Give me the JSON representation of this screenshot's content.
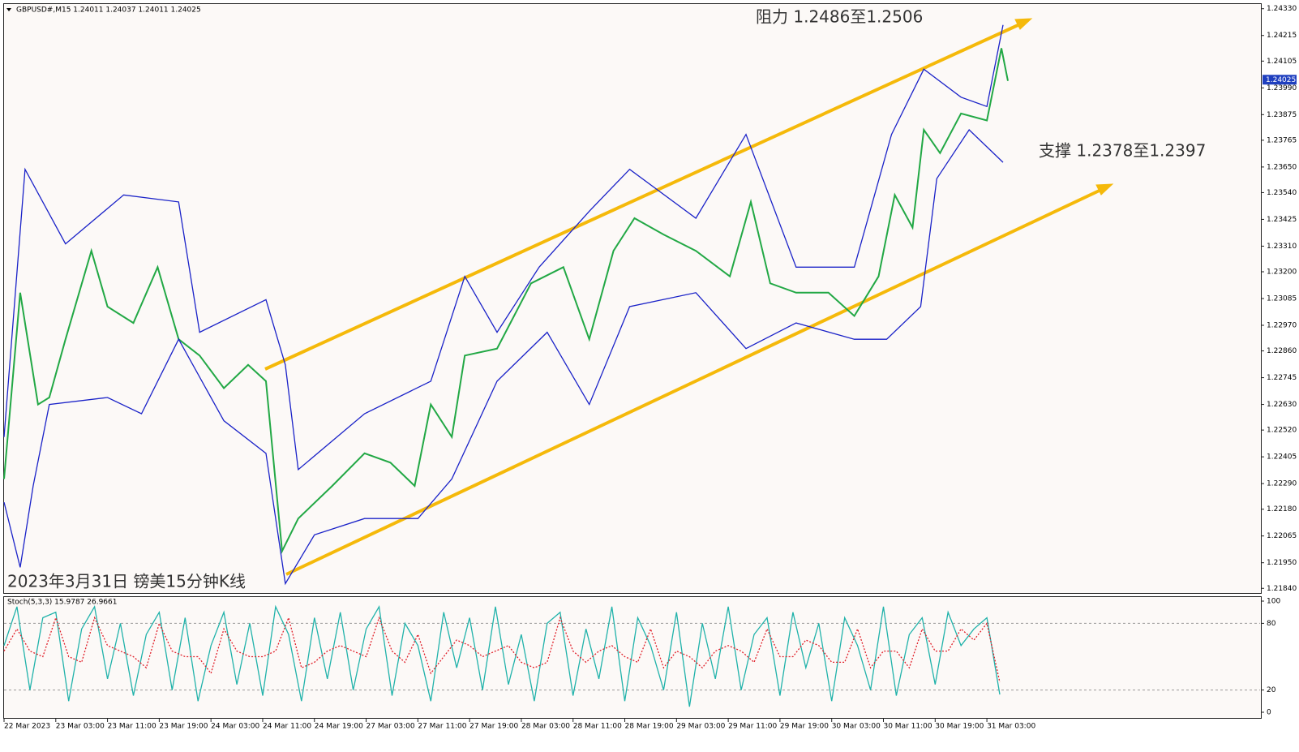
{
  "chart_data": [
    {
      "type": "line",
      "title": "GBPUSD#,M15  1.24011 1.24037 1.24011 1.24025",
      "annotations": [
        "阻力 1.2486至1.2506",
        "支撑 1.2378至1.2397",
        "2023年3月31日 镑美15分钟K线"
      ],
      "last_price": 1.24025,
      "xlim": [
        0,
        777
      ],
      "ylim": [
        1.2182,
        1.2435
      ],
      "yticks": [
        {
          "value": 1.2433,
          "label": "1.24330"
        },
        {
          "value": 1.24215,
          "label": "1.24215"
        },
        {
          "value": 1.24105,
          "label": "1.24105"
        },
        {
          "value": 1.2399,
          "label": "1.23990"
        },
        {
          "value": 1.23875,
          "label": "1.23875"
        },
        {
          "value": 1.23765,
          "label": "1.23765"
        },
        {
          "value": 1.2365,
          "label": "1.23650"
        },
        {
          "value": 1.2354,
          "label": "1.23540"
        },
        {
          "value": 1.23425,
          "label": "1.23425"
        },
        {
          "value": 1.2331,
          "label": "1.23310"
        },
        {
          "value": 1.232,
          "label": "1.23200"
        },
        {
          "value": 1.23085,
          "label": "1.23085"
        },
        {
          "value": 1.2297,
          "label": "1.22970"
        },
        {
          "value": 1.2286,
          "label": "1.22860"
        },
        {
          "value": 1.22745,
          "label": "1.22745"
        },
        {
          "value": 1.2263,
          "label": "1.22630"
        },
        {
          "value": 1.2252,
          "label": "1.22520"
        },
        {
          "value": 1.22405,
          "label": "1.22405"
        },
        {
          "value": 1.2229,
          "label": "1.22290"
        },
        {
          "value": 1.2218,
          "label": "1.22180"
        },
        {
          "value": 1.22065,
          "label": "1.22065"
        },
        {
          "value": 1.2195,
          "label": "1.21950"
        },
        {
          "value": 1.2184,
          "label": "1.21840"
        }
      ],
      "series": [
        {
          "color": "#22a845",
          "x": [
            0,
            10,
            21,
            28,
            38,
            54,
            64,
            80,
            95,
            108,
            121,
            136,
            151,
            162,
            172,
            182,
            203,
            223,
            239,
            254,
            264,
            277,
            285,
            305,
            326,
            346,
            362,
            377,
            390,
            408,
            428,
            449,
            462,
            474,
            490,
            510,
            526,
            541,
            551,
            562,
            569,
            579,
            592,
            608,
            617,
            621
          ],
          "values": [
            1.2231,
            1.2311,
            1.2263,
            1.2266,
            1.2291,
            1.2329,
            1.2305,
            1.2298,
            1.2322,
            1.2291,
            1.2284,
            1.227,
            1.228,
            1.2273,
            1.22,
            1.2214,
            1.2228,
            1.2242,
            1.2238,
            1.2228,
            1.2263,
            1.2249,
            1.2284,
            1.2287,
            1.2315,
            1.2322,
            1.2291,
            1.2329,
            1.2343,
            1.2336,
            1.2329,
            1.2318,
            1.235,
            1.2315,
            1.2311,
            1.2311,
            1.2301,
            1.2318,
            1.2353,
            1.2339,
            1.2381,
            1.2371,
            1.2388,
            1.2385,
            1.2416,
            1.2402
          ]
        },
        {
          "color": "#1a22c8",
          "x": [
            0,
            13,
            38,
            74,
            108,
            121,
            162,
            174,
            182,
            223,
            264,
            285,
            305,
            331,
            362,
            387,
            428,
            459,
            490,
            526,
            549,
            569,
            592,
            608,
            618
          ],
          "values": [
            1.2249,
            1.2364,
            1.2332,
            1.2353,
            1.235,
            1.2294,
            1.2308,
            1.228,
            1.2235,
            1.2259,
            1.2273,
            1.2318,
            1.2294,
            1.2322,
            1.2346,
            1.2364,
            1.2343,
            1.2379,
            1.2322,
            1.2322,
            1.2379,
            1.2407,
            1.2395,
            1.2391,
            1.2426
          ]
        },
        {
          "color": "#1a22c8",
          "x": [
            0,
            10,
            18,
            28,
            64,
            85,
            108,
            136,
            162,
            174,
            192,
            223,
            256,
            277,
            305,
            336,
            362,
            387,
            428,
            459,
            490,
            526,
            546,
            567,
            577,
            597,
            618
          ],
          "values": [
            1.2221,
            1.2193,
            1.2228,
            1.2263,
            1.2266,
            1.2259,
            1.2291,
            1.2256,
            1.2242,
            1.2186,
            1.2207,
            1.2214,
            1.2214,
            1.2231,
            1.2273,
            1.2294,
            1.2263,
            1.2305,
            1.2311,
            1.2287,
            1.2298,
            1.2291,
            1.2291,
            1.2305,
            1.236,
            1.2381,
            1.2367
          ]
        }
      ]
    },
    {
      "type": "line",
      "title": "Stoch(5,3,3) 15.9787 26.9661",
      "xlim": [
        0,
        777
      ],
      "ylim": [
        0,
        100
      ],
      "yticks": [
        100,
        80,
        20,
        0
      ],
      "grid": true,
      "xticks": [
        {
          "value": 0,
          "label": "22 Mar 2023"
        },
        {
          "value": 32,
          "label": "23 Mar 03:00"
        },
        {
          "value": 64,
          "label": "23 Mar 11:00"
        },
        {
          "value": 96,
          "label": "23 Mar 19:00"
        },
        {
          "value": 128,
          "label": "24 Mar 03:00"
        },
        {
          "value": 160,
          "label": "24 Mar 11:00"
        },
        {
          "value": 192,
          "label": "24 Mar 19:00"
        },
        {
          "value": 224,
          "label": "27 Mar 03:00"
        },
        {
          "value": 256,
          "label": "27 Mar 11:00"
        },
        {
          "value": 288,
          "label": "27 Mar 19:00"
        },
        {
          "value": 320,
          "label": "28 Mar 03:00"
        },
        {
          "value": 352,
          "label": "28 Mar 11:00"
        },
        {
          "value": 384,
          "label": "28 Mar 19:00"
        },
        {
          "value": 416,
          "label": "29 Mar 03:00"
        },
        {
          "value": 448,
          "label": "29 Mar 11:00"
        },
        {
          "value": 480,
          "label": "29 Mar 19:00"
        },
        {
          "value": 512,
          "label": "30 Mar 03:00"
        },
        {
          "value": 544,
          "label": "30 Mar 11:00"
        },
        {
          "value": 576,
          "label": "30 Mar 19:00"
        },
        {
          "value": 608,
          "label": "31 Mar 03:00"
        }
      ],
      "series": [
        {
          "color": "#20b2aa",
          "x": [
            0,
            8,
            16,
            24,
            32,
            40,
            48,
            56,
            64,
            72,
            80,
            88,
            96,
            104,
            112,
            120,
            128,
            136,
            144,
            152,
            160,
            168,
            176,
            184,
            192,
            200,
            208,
            216,
            224,
            232,
            240,
            248,
            256,
            264,
            272,
            280,
            288,
            296,
            304,
            312,
            320,
            328,
            336,
            344,
            352,
            360,
            368,
            376,
            384,
            392,
            400,
            408,
            416,
            424,
            432,
            440,
            448,
            456,
            464,
            472,
            480,
            488,
            496,
            504,
            512,
            520,
            528,
            536,
            544,
            552,
            560,
            568,
            576,
            584,
            592,
            600,
            608,
            616
          ],
          "values": [
            60,
            95,
            20,
            85,
            90,
            10,
            75,
            95,
            30,
            80,
            15,
            70,
            90,
            20,
            85,
            10,
            60,
            90,
            25,
            80,
            15,
            95,
            70,
            10,
            85,
            30,
            90,
            20,
            75,
            95,
            15,
            80,
            60,
            10,
            90,
            40,
            85,
            20,
            95,
            25,
            70,
            10,
            80,
            90,
            15,
            75,
            30,
            95,
            10,
            85,
            60,
            20,
            90,
            5,
            80,
            30,
            95,
            20,
            70,
            85,
            15,
            90,
            40,
            80,
            10,
            85,
            60,
            20,
            95,
            15,
            70,
            85,
            25,
            90,
            60,
            75,
            85,
            16
          ]
        },
        {
          "color": "#e0202a",
          "x": [
            0,
            8,
            16,
            24,
            32,
            40,
            48,
            56,
            64,
            72,
            80,
            88,
            96,
            104,
            112,
            120,
            128,
            136,
            144,
            152,
            160,
            168,
            176,
            184,
            192,
            200,
            208,
            216,
            224,
            232,
            240,
            248,
            256,
            264,
            272,
            280,
            288,
            296,
            304,
            312,
            320,
            328,
            336,
            344,
            352,
            360,
            368,
            376,
            384,
            392,
            400,
            408,
            416,
            424,
            432,
            440,
            448,
            456,
            464,
            472,
            480,
            488,
            496,
            504,
            512,
            520,
            528,
            536,
            544,
            552,
            560,
            568,
            576,
            584,
            592,
            600,
            608,
            616
          ],
          "values": [
            55,
            75,
            55,
            50,
            85,
            50,
            45,
            85,
            60,
            55,
            50,
            40,
            80,
            55,
            50,
            50,
            35,
            75,
            55,
            50,
            50,
            55,
            85,
            40,
            45,
            55,
            60,
            55,
            50,
            85,
            55,
            45,
            70,
            35,
            50,
            65,
            60,
            50,
            55,
            60,
            45,
            40,
            45,
            85,
            55,
            45,
            55,
            60,
            50,
            45,
            75,
            40,
            55,
            50,
            40,
            55,
            60,
            55,
            45,
            75,
            50,
            50,
            65,
            60,
            45,
            45,
            75,
            40,
            55,
            55,
            40,
            75,
            55,
            55,
            75,
            65,
            80,
            27
          ]
        }
      ]
    }
  ]
}
